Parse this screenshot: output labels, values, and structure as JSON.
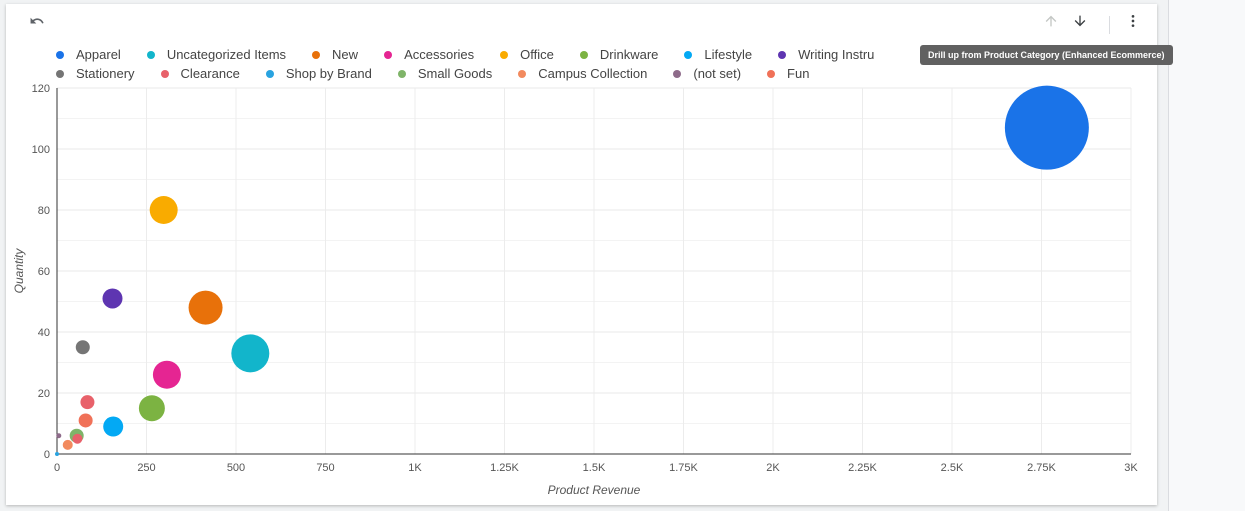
{
  "toolbar": {
    "undo_icon": "undo-icon",
    "up_icon": "arrow-up-icon",
    "down_icon": "arrow-down-icon",
    "more_icon": "more-vert-icon",
    "tooltip": "Drill up from Product Category (Enhanced Ecommerce)"
  },
  "chart_data": {
    "type": "scatter",
    "xlabel": "Product Revenue",
    "ylabel": "Quantity",
    "xlim": [
      0,
      3000
    ],
    "ylim": [
      0,
      120
    ],
    "x_ticks": [
      "0",
      "250",
      "500",
      "750",
      "1K",
      "1.25K",
      "1.5K",
      "1.75K",
      "2K",
      "2.25K",
      "2.5K",
      "2.75K",
      "3K"
    ],
    "y_ticks": [
      "0",
      "20",
      "40",
      "60",
      "80",
      "100",
      "120"
    ],
    "grid": true,
    "legend_position": "top",
    "series": [
      {
        "name": "Apparel",
        "color": "#1a73e8",
        "x": 2765,
        "y": 107,
        "r": 42
      },
      {
        "name": "Uncategorized Items",
        "color": "#12b5cb",
        "x": 540,
        "y": 33,
        "r": 19
      },
      {
        "name": "New",
        "color": "#e8710a",
        "x": 415,
        "y": 48,
        "r": 17
      },
      {
        "name": "Accessories",
        "color": "#e52592",
        "x": 307,
        "y": 26,
        "r": 14
      },
      {
        "name": "Office",
        "color": "#f9ab00",
        "x": 298,
        "y": 80,
        "r": 14
      },
      {
        "name": "Drinkware",
        "color": "#7cb342",
        "x": 265,
        "y": 15,
        "r": 13
      },
      {
        "name": "Lifestyle",
        "color": "#03a9f4",
        "x": 157,
        "y": 9,
        "r": 10
      },
      {
        "name": "Writing Instru",
        "color": "#5e35b1",
        "x": 155,
        "y": 51,
        "r": 10
      },
      {
        "name": "Stationery",
        "color": "#757575",
        "x": 72,
        "y": 35,
        "r": 7
      },
      {
        "name": "Clearance",
        "color": "#e8616a",
        "x": 85,
        "y": 17,
        "r": 7
      },
      {
        "name": "Shop by Brand",
        "color": "#29a3e0",
        "x": 0,
        "y": 0,
        "r": 2
      },
      {
        "name": "Small Goods",
        "color": "#7fb469",
        "x": 55,
        "y": 6,
        "r": 7
      },
      {
        "name": "Campus Collection",
        "color": "#f28a5e",
        "x": 30,
        "y": 3,
        "r": 5
      },
      {
        "name": "(not set)",
        "color": "#8e6b8a",
        "x": 5,
        "y": 6,
        "r": 2.5
      },
      {
        "name": "Fun",
        "color": "#f07158",
        "x": 80,
        "y": 11,
        "r": 7
      },
      {
        "name": "",
        "color": "#e8616a",
        "x": 57,
        "y": 5,
        "r": 5
      }
    ]
  }
}
